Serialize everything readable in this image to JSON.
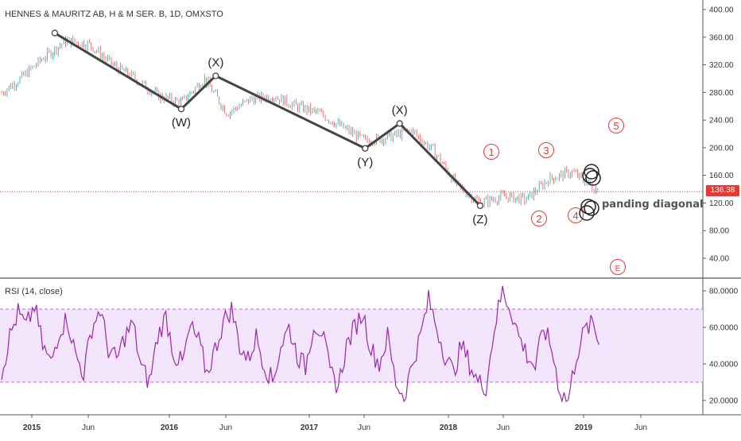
{
  "header": {
    "symbol_title": "HENNES & MAURITZ AB, H & M SER. B, 1D, OMXSTO"
  },
  "rsi_header": {
    "title": "RSI (14, close)"
  },
  "last_price_tag": "136.38",
  "colors": {
    "up": "#26a69a",
    "down": "#ef5350",
    "wave": "#444444",
    "labels_red": "#e53935",
    "rsi_line": "#9c27b0",
    "rsi_band": "#f3e5fb",
    "rsi_bound": "#b36bd3",
    "price_line": "#e53935"
  },
  "chart_data": [
    {
      "type": "line",
      "title": "HENNES & MAURITZ AB, H & M SER. B, 1D, OMXSTO",
      "ylim": [
        0,
        410
      ],
      "yticks": [
        "400.00",
        "360.00",
        "320.00",
        "280.00",
        "240.00",
        "200.00",
        "160.00",
        "120.00",
        "80.00",
        "40.00"
      ],
      "xticks": [
        "2015",
        "Jun",
        "2016",
        "Jun",
        "2017",
        "Jun",
        "2018",
        "Jun",
        "2019",
        "Jun"
      ],
      "series": [
        {
          "x": [
            "2014-10",
            "2014-12",
            "2015-02",
            "2015-04",
            "2015-06",
            "2015-08",
            "2015-10",
            "2015-12",
            "2016-02",
            "2016-04",
            "2016-06",
            "2016-08",
            "2016-10",
            "2016-12",
            "2017-02",
            "2017-04",
            "2017-06",
            "2017-08",
            "2017-10",
            "2017-12",
            "2018-02",
            "2018-04",
            "2018-06",
            "2018-08",
            "2018-10",
            "2018-12",
            "2019-02",
            "2019-03"
          ],
          "values": [
            275,
            300,
            330,
            355,
            350,
            320,
            300,
            275,
            265,
            300,
            250,
            270,
            275,
            260,
            250,
            230,
            210,
            215,
            225,
            195,
            145,
            120,
            130,
            125,
            155,
            165,
            140,
            145
          ]
        }
      ],
      "wave_points": [
        {
          "label": "",
          "date": "2015-03",
          "value": 366
        },
        {
          "label": "(W)",
          "date": "2016-02",
          "value": 256
        },
        {
          "label": "(X)",
          "date": "2016-05",
          "value": 304
        },
        {
          "label": "(Y)",
          "date": "2017-06",
          "value": 199
        },
        {
          "label": "(X)",
          "date": "2017-09",
          "value": 235
        },
        {
          "label": "(Z)",
          "date": "2018-04",
          "value": 116
        }
      ],
      "circled_labels": [
        "1",
        "2",
        "3",
        "4",
        "5",
        "E"
      ],
      "annotation": "panding diagonal",
      "last_price": 136.38
    },
    {
      "type": "line",
      "title": "RSI (14, close)",
      "ylim": [
        10,
        86
      ],
      "yticks": [
        "80.0000",
        "60.0000",
        "40.0000",
        "20.0000"
      ],
      "bounds": [
        30,
        70
      ],
      "series": [
        {
          "name": "RSI (14, close)",
          "values": [
            35,
            55,
            68,
            60,
            72,
            50,
            40,
            58,
            65,
            45,
            35,
            60,
            70,
            48,
            42,
            55,
            62,
            38,
            30,
            55,
            66,
            45,
            40,
            60,
            52,
            35,
            48,
            63,
            70,
            50,
            42,
            55,
            40,
            30,
            50,
            60,
            45,
            38,
            62,
            58,
            35,
            28,
            50,
            60,
            68,
            48,
            40,
            55,
            30,
            22,
            40,
            55,
            75,
            60,
            45,
            35,
            50,
            40,
            30,
            28,
            60,
            80,
            70,
            55,
            45,
            38,
            60,
            48,
            25,
            20,
            45,
            58,
            62,
            48
          ]
        }
      ]
    }
  ]
}
